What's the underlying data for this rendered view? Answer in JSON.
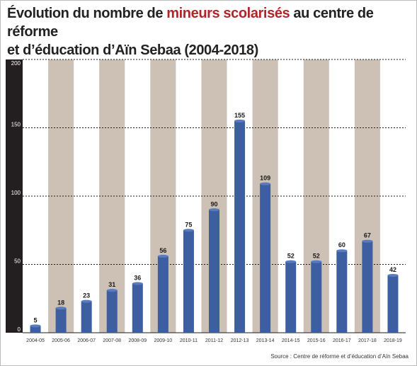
{
  "title": {
    "part1": "Évolution du nombre de ",
    "highlight": "mineurs scolarisés",
    "part2": " au centre de réforme",
    "line2": "et d’éducation d’Aïn Sebaa (2004-2018)"
  },
  "source": "Source : Centre de réforme et d’éducation d’Aïn Sebaa",
  "colors": {
    "bar": "#3d5ea1",
    "stripe": "#c4b6a8",
    "axis_panel": "#231f20",
    "title_highlight": "#b22427"
  },
  "chart_data": {
    "type": "bar",
    "categories": [
      "2004-05",
      "2005-06",
      "2006-07",
      "2007-08",
      "2008-09",
      "2009-10",
      "2010-11",
      "2011-12",
      "2012-13",
      "2013-14",
      "2014-15",
      "2015-16",
      "2016-17",
      "2017-18",
      "2018-19"
    ],
    "values": [
      5,
      18,
      23,
      31,
      36,
      56,
      75,
      90,
      155,
      109,
      52,
      52,
      60,
      67,
      42
    ],
    "yticks": [
      0,
      50,
      100,
      150,
      200
    ],
    "ylim": [
      0,
      200
    ],
    "grid": true
  }
}
